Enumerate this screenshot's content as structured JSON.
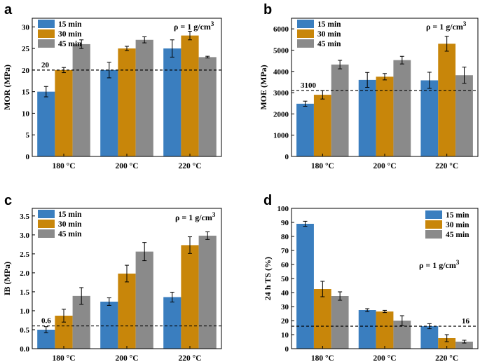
{
  "figure": {
    "colors": {
      "15 min": "#3a7ebf",
      "30 min": "#c8860a",
      "45 min": "#8a8a8a"
    }
  },
  "chart_data": [
    {
      "panel": "a",
      "type": "bar",
      "ylabel": "MOR (MPa)",
      "ylim": [
        0,
        32
      ],
      "yticks": [
        0,
        5,
        10,
        15,
        20,
        25,
        30
      ],
      "categories": [
        "180 °C",
        "200 °C",
        "220 °C"
      ],
      "series": [
        {
          "name": "15 min",
          "values": [
            15,
            20,
            25
          ],
          "errors": [
            1.2,
            1.8,
            2.0
          ]
        },
        {
          "name": "30 min",
          "values": [
            20,
            25,
            28
          ],
          "errors": [
            0.6,
            0.5,
            1.0
          ]
        },
        {
          "name": "45 min",
          "values": [
            26,
            27,
            23
          ],
          "errors": [
            1.0,
            0.7,
            0.2
          ]
        }
      ],
      "reference": {
        "value": 20,
        "label": "20"
      },
      "annotation": {
        "base": "ρ = 1 g/cm",
        "sup": "3"
      },
      "legend_position": "top-left"
    },
    {
      "panel": "b",
      "type": "bar",
      "ylabel": "MOE (MPa)",
      "ylim": [
        0,
        6500
      ],
      "yticks": [
        0,
        1000,
        2000,
        3000,
        4000,
        5000,
        6000
      ],
      "categories": [
        "180 °C",
        "200 °C",
        "220 °C"
      ],
      "series": [
        {
          "name": "15 min",
          "values": [
            2480,
            3600,
            3580
          ],
          "errors": [
            120,
            350,
            380
          ]
        },
        {
          "name": "30 min",
          "values": [
            2900,
            3750,
            5300
          ],
          "errors": [
            200,
            150,
            350
          ]
        },
        {
          "name": "45 min",
          "values": [
            4320,
            4530,
            3820
          ],
          "errors": [
            200,
            180,
            380
          ]
        }
      ],
      "reference": {
        "value": 3100,
        "label": "3100"
      },
      "annotation": {
        "base": "ρ = 1 g/cm",
        "sup": "3"
      },
      "legend_position": "top-left"
    },
    {
      "panel": "c",
      "type": "bar",
      "ylabel": "IB (MPa)",
      "ylim": [
        0,
        3.7
      ],
      "yticks": [
        0.0,
        0.5,
        1.0,
        1.5,
        2.0,
        2.5,
        3.0,
        3.5
      ],
      "categories": [
        "180 °C",
        "200 °C",
        "220 °C"
      ],
      "series": [
        {
          "name": "15 min",
          "values": [
            0.5,
            1.24,
            1.36
          ],
          "errors": [
            0.08,
            0.1,
            0.13
          ]
        },
        {
          "name": "30 min",
          "values": [
            0.87,
            1.98,
            2.73
          ],
          "errors": [
            0.17,
            0.22,
            0.22
          ]
        },
        {
          "name": "45 min",
          "values": [
            1.39,
            2.56,
            2.98
          ],
          "errors": [
            0.22,
            0.24,
            0.1
          ]
        }
      ],
      "reference": {
        "value": 0.6,
        "label": "0.6"
      },
      "annotation": {
        "base": "ρ = 1 g/cm",
        "sup": "3"
      },
      "legend_position": "top-left"
    },
    {
      "panel": "d",
      "type": "bar",
      "ylabel": "24 h TS (%)",
      "ylim": [
        0,
        100
      ],
      "yticks": [
        0,
        10,
        20,
        30,
        40,
        50,
        60,
        70,
        80,
        90,
        100
      ],
      "categories": [
        "180 °C",
        "200 °C",
        "220 °C"
      ],
      "series": [
        {
          "name": "15 min",
          "values": [
            89,
            27.5,
            16
          ],
          "errors": [
            1.8,
            1.0,
            1.8
          ]
        },
        {
          "name": "30 min",
          "values": [
            42.5,
            26.5,
            7.5
          ],
          "errors": [
            5.5,
            0.8,
            2.5
          ]
        },
        {
          "name": "45 min",
          "values": [
            37.5,
            20,
            5
          ],
          "errors": [
            3.0,
            3.5,
            1.0
          ]
        }
      ],
      "reference": {
        "value": 16,
        "label": "16"
      },
      "annotation": {
        "base": "ρ = 1 g/cm",
        "sup": "3"
      },
      "legend_position": "top-right"
    }
  ]
}
